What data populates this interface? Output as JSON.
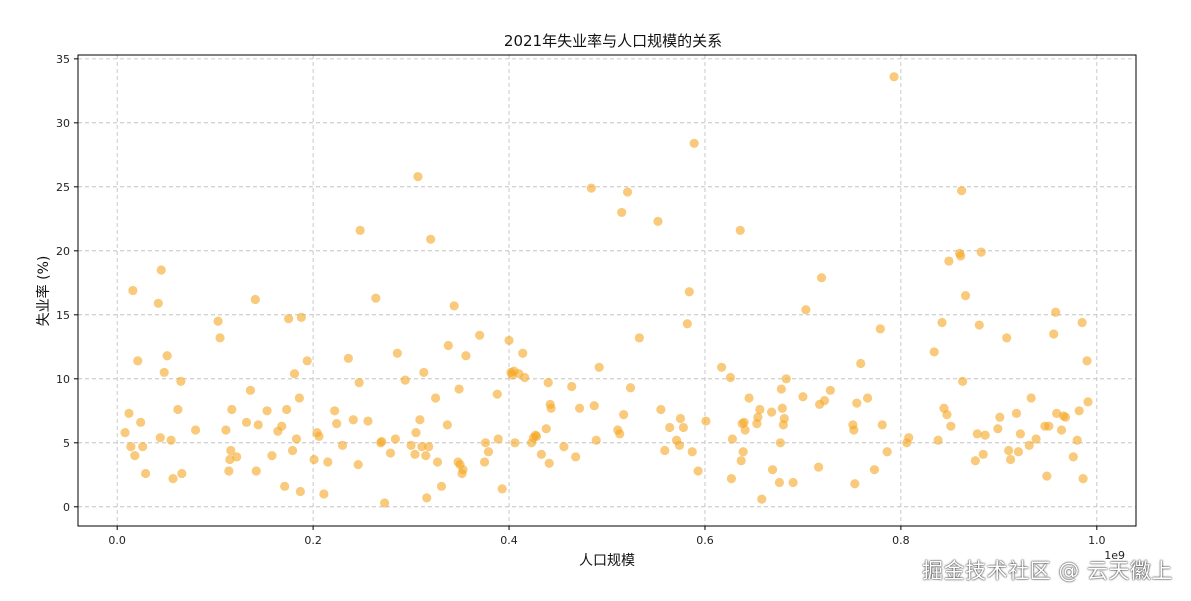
{
  "chart_data": {
    "type": "scatter",
    "title": "2021年失业率与人口规模的关系",
    "xlabel": "人口规模",
    "ylabel": "失业率 (%)",
    "x_offset_label": "1e9",
    "xlim": [
      -0.04,
      1.04
    ],
    "ylim": [
      -1.5,
      35.3
    ],
    "x_ticks": [
      0.0,
      0.2,
      0.4,
      0.6,
      0.8,
      1.0
    ],
    "x_tick_labels": [
      "0.0",
      "0.2",
      "0.4",
      "0.6",
      "0.8",
      "1.0"
    ],
    "y_ticks": [
      0,
      5,
      10,
      15,
      20,
      25,
      30,
      35
    ],
    "y_tick_labels": [
      "0",
      "5",
      "10",
      "15",
      "20",
      "25",
      "30",
      "35"
    ],
    "grid": true,
    "marker_color": "#f5a623",
    "points": [
      [
        0.008,
        5.8
      ],
      [
        0.012,
        7.3
      ],
      [
        0.014,
        4.7
      ],
      [
        0.016,
        16.9
      ],
      [
        0.018,
        4.0
      ],
      [
        0.021,
        11.4
      ],
      [
        0.024,
        6.6
      ],
      [
        0.026,
        4.7
      ],
      [
        0.029,
        2.6
      ],
      [
        0.042,
        15.9
      ],
      [
        0.044,
        5.4
      ],
      [
        0.045,
        18.5
      ],
      [
        0.048,
        10.5
      ],
      [
        0.051,
        11.8
      ],
      [
        0.055,
        5.2
      ],
      [
        0.057,
        2.2
      ],
      [
        0.062,
        7.6
      ],
      [
        0.065,
        9.8
      ],
      [
        0.066,
        2.6
      ],
      [
        0.08,
        6.0
      ],
      [
        0.103,
        14.5
      ],
      [
        0.105,
        13.2
      ],
      [
        0.111,
        6.0
      ],
      [
        0.114,
        2.8
      ],
      [
        0.115,
        3.7
      ],
      [
        0.116,
        4.4
      ],
      [
        0.117,
        7.6
      ],
      [
        0.122,
        3.9
      ],
      [
        0.132,
        6.6
      ],
      [
        0.136,
        9.1
      ],
      [
        0.141,
        16.2
      ],
      [
        0.142,
        2.8
      ],
      [
        0.144,
        6.4
      ],
      [
        0.153,
        7.5
      ],
      [
        0.158,
        4.0
      ],
      [
        0.164,
        5.9
      ],
      [
        0.168,
        6.3
      ],
      [
        0.171,
        1.6
      ],
      [
        0.173,
        7.6
      ],
      [
        0.175,
        14.7
      ],
      [
        0.179,
        4.4
      ],
      [
        0.181,
        10.4
      ],
      [
        0.183,
        5.3
      ],
      [
        0.186,
        8.5
      ],
      [
        0.187,
        1.2
      ],
      [
        0.188,
        14.8
      ],
      [
        0.194,
        11.4
      ],
      [
        0.201,
        3.7
      ],
      [
        0.204,
        5.8
      ],
      [
        0.206,
        5.5
      ],
      [
        0.211,
        1.0
      ],
      [
        0.215,
        3.5
      ],
      [
        0.222,
        7.5
      ],
      [
        0.224,
        6.5
      ],
      [
        0.23,
        4.8
      ],
      [
        0.236,
        11.6
      ],
      [
        0.241,
        6.8
      ],
      [
        0.246,
        3.3
      ],
      [
        0.247,
        9.7
      ],
      [
        0.248,
        21.6
      ],
      [
        0.256,
        6.7
      ],
      [
        0.264,
        16.3
      ],
      [
        0.269,
        5.0
      ],
      [
        0.27,
        5.1
      ],
      [
        0.273,
        0.3
      ],
      [
        0.279,
        4.2
      ],
      [
        0.284,
        5.3
      ],
      [
        0.286,
        12.0
      ],
      [
        0.294,
        9.9
      ],
      [
        0.3,
        4.8
      ],
      [
        0.304,
        4.1
      ],
      [
        0.305,
        5.8
      ],
      [
        0.307,
        25.8
      ],
      [
        0.309,
        6.8
      ],
      [
        0.311,
        4.7
      ],
      [
        0.313,
        10.5
      ],
      [
        0.315,
        4.0
      ],
      [
        0.316,
        0.7
      ],
      [
        0.318,
        4.7
      ],
      [
        0.32,
        20.9
      ],
      [
        0.325,
        8.5
      ],
      [
        0.327,
        3.5
      ],
      [
        0.331,
        1.6
      ],
      [
        0.337,
        6.4
      ],
      [
        0.338,
        12.6
      ],
      [
        0.344,
        15.7
      ],
      [
        0.348,
        3.5
      ],
      [
        0.349,
        9.2
      ],
      [
        0.35,
        3.3
      ],
      [
        0.352,
        2.6
      ],
      [
        0.353,
        2.9
      ],
      [
        0.356,
        11.8
      ],
      [
        0.37,
        13.4
      ],
      [
        0.375,
        3.5
      ],
      [
        0.376,
        5.0
      ],
      [
        0.379,
        4.3
      ],
      [
        0.388,
        8.8
      ],
      [
        0.389,
        5.3
      ],
      [
        0.393,
        1.4
      ],
      [
        0.4,
        13.0
      ],
      [
        0.402,
        10.5
      ],
      [
        0.403,
        10.3
      ],
      [
        0.405,
        10.6
      ],
      [
        0.406,
        5.0
      ],
      [
        0.41,
        10.4
      ],
      [
        0.414,
        12.0
      ],
      [
        0.416,
        10.1
      ],
      [
        0.423,
        5.0
      ],
      [
        0.425,
        5.4
      ],
      [
        0.427,
        5.6
      ],
      [
        0.428,
        5.5
      ],
      [
        0.433,
        4.1
      ],
      [
        0.438,
        6.1
      ],
      [
        0.44,
        9.7
      ],
      [
        0.441,
        3.4
      ],
      [
        0.442,
        8.0
      ],
      [
        0.443,
        7.7
      ],
      [
        0.456,
        4.7
      ],
      [
        0.464,
        9.4
      ],
      [
        0.468,
        3.9
      ],
      [
        0.472,
        7.7
      ],
      [
        0.484,
        24.9
      ],
      [
        0.487,
        7.9
      ],
      [
        0.489,
        5.2
      ],
      [
        0.492,
        10.9
      ],
      [
        0.511,
        6.0
      ],
      [
        0.513,
        5.7
      ],
      [
        0.515,
        23.0
      ],
      [
        0.517,
        7.2
      ],
      [
        0.521,
        24.6
      ],
      [
        0.524,
        9.3
      ],
      [
        0.533,
        13.2
      ],
      [
        0.552,
        22.3
      ],
      [
        0.555,
        7.6
      ],
      [
        0.559,
        4.4
      ],
      [
        0.564,
        6.2
      ],
      [
        0.571,
        5.2
      ],
      [
        0.574,
        4.8
      ],
      [
        0.575,
        6.9
      ],
      [
        0.578,
        6.2
      ],
      [
        0.582,
        14.3
      ],
      [
        0.584,
        16.8
      ],
      [
        0.587,
        4.3
      ],
      [
        0.589,
        28.4
      ],
      [
        0.593,
        2.8
      ],
      [
        0.601,
        6.7
      ],
      [
        0.617,
        10.9
      ],
      [
        0.626,
        10.1
      ],
      [
        0.627,
        2.2
      ],
      [
        0.628,
        5.3
      ],
      [
        0.636,
        21.6
      ],
      [
        0.637,
        3.6
      ],
      [
        0.638,
        6.5
      ],
      [
        0.639,
        4.3
      ],
      [
        0.64,
        6.6
      ],
      [
        0.641,
        6.0
      ],
      [
        0.645,
        8.5
      ],
      [
        0.653,
        6.5
      ],
      [
        0.654,
        7.0
      ],
      [
        0.656,
        7.6
      ],
      [
        0.658,
        0.6
      ],
      [
        0.668,
        7.4
      ],
      [
        0.669,
        2.9
      ],
      [
        0.676,
        1.9
      ],
      [
        0.677,
        5.0
      ],
      [
        0.678,
        9.2
      ],
      [
        0.679,
        7.7
      ],
      [
        0.68,
        6.4
      ],
      [
        0.681,
        6.9
      ],
      [
        0.683,
        10.0
      ],
      [
        0.69,
        1.9
      ],
      [
        0.7,
        8.6
      ],
      [
        0.703,
        15.4
      ],
      [
        0.716,
        3.1
      ],
      [
        0.717,
        8.0
      ],
      [
        0.719,
        17.9
      ],
      [
        0.722,
        8.3
      ],
      [
        0.728,
        9.1
      ],
      [
        0.751,
        6.4
      ],
      [
        0.752,
        6.0
      ],
      [
        0.753,
        1.8
      ],
      [
        0.755,
        8.1
      ],
      [
        0.759,
        11.2
      ],
      [
        0.766,
        8.5
      ],
      [
        0.773,
        2.9
      ],
      [
        0.779,
        13.9
      ],
      [
        0.781,
        6.4
      ],
      [
        0.786,
        4.3
      ],
      [
        0.793,
        33.6
      ],
      [
        0.806,
        5.0
      ],
      [
        0.808,
        5.4
      ],
      [
        0.834,
        12.1
      ],
      [
        0.838,
        5.2
      ],
      [
        0.842,
        14.4
      ],
      [
        0.844,
        7.7
      ],
      [
        0.847,
        7.2
      ],
      [
        0.849,
        19.2
      ],
      [
        0.851,
        6.3
      ],
      [
        0.86,
        19.8
      ],
      [
        0.861,
        19.6
      ],
      [
        0.862,
        24.7
      ],
      [
        0.863,
        9.8
      ],
      [
        0.866,
        16.5
      ],
      [
        0.876,
        3.6
      ],
      [
        0.878,
        5.7
      ],
      [
        0.88,
        14.2
      ],
      [
        0.882,
        19.9
      ],
      [
        0.884,
        4.1
      ],
      [
        0.886,
        5.6
      ],
      [
        0.899,
        6.1
      ],
      [
        0.901,
        7.0
      ],
      [
        0.908,
        13.2
      ],
      [
        0.91,
        4.4
      ],
      [
        0.912,
        3.7
      ],
      [
        0.918,
        7.3
      ],
      [
        0.92,
        4.3
      ],
      [
        0.922,
        5.7
      ],
      [
        0.931,
        4.8
      ],
      [
        0.933,
        8.5
      ],
      [
        0.938,
        5.3
      ],
      [
        0.947,
        6.3
      ],
      [
        0.949,
        2.4
      ],
      [
        0.951,
        6.3
      ],
      [
        0.956,
        13.5
      ],
      [
        0.958,
        15.2
      ],
      [
        0.959,
        7.3
      ],
      [
        0.964,
        6.0
      ],
      [
        0.966,
        7.1
      ],
      [
        0.968,
        7.0
      ],
      [
        0.976,
        3.9
      ],
      [
        0.98,
        5.2
      ],
      [
        0.982,
        7.5
      ],
      [
        0.985,
        14.4
      ],
      [
        0.986,
        2.2
      ],
      [
        0.99,
        11.4
      ],
      [
        0.991,
        8.2
      ]
    ]
  },
  "watermark": "掘金技术社区 @ 云天徽上"
}
